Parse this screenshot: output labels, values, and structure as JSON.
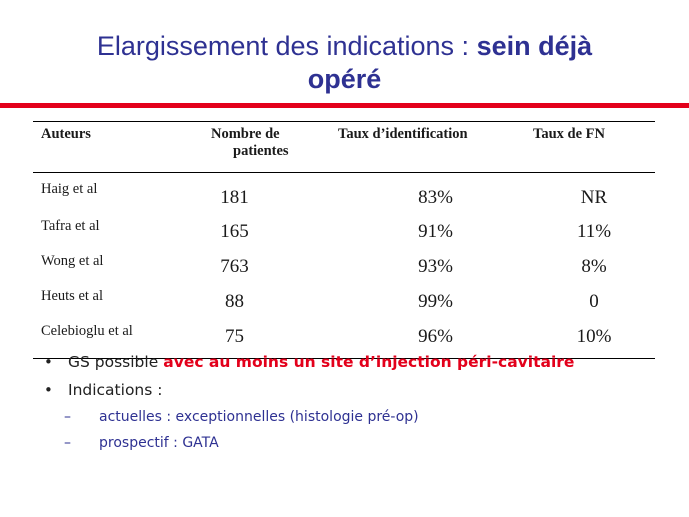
{
  "title": {
    "part1": "Elargissement des indications : ",
    "part2": "sein déjà",
    "line2": "opéré"
  },
  "table": {
    "headers": [
      "Auteurs",
      "Nombre de patientes",
      "Taux d’identification",
      "Taux de FN"
    ],
    "header_col1_line1": "Nombre de",
    "header_col1_line2": "patientes",
    "rows": [
      {
        "author": "Haig et al",
        "n": "181",
        "id_rate": "83%",
        "fn_rate": "NR"
      },
      {
        "author": "Tafra et al",
        "n": "165",
        "id_rate": "91%",
        "fn_rate": "11%"
      },
      {
        "author": "Wong et al",
        "n": "763",
        "id_rate": "93%",
        "fn_rate": "8%"
      },
      {
        "author": "Heuts et al",
        "n": "88",
        "id_rate": "99%",
        "fn_rate": "0"
      },
      {
        "author": "Celebioglu et al",
        "n": "75",
        "id_rate": "96%",
        "fn_rate": "10%"
      }
    ]
  },
  "bullets": {
    "item1_plain": "GS possible",
    "item1_red": "avec au moins un site d’injection péri-cavitaire",
    "item2": "Indications :",
    "sub1": "actuelles : exceptionnelles (histologie pré-op)",
    "sub2": "prospectif : GATA"
  },
  "colors": {
    "title": "#2e3192",
    "accent_red": "#e3001b"
  }
}
